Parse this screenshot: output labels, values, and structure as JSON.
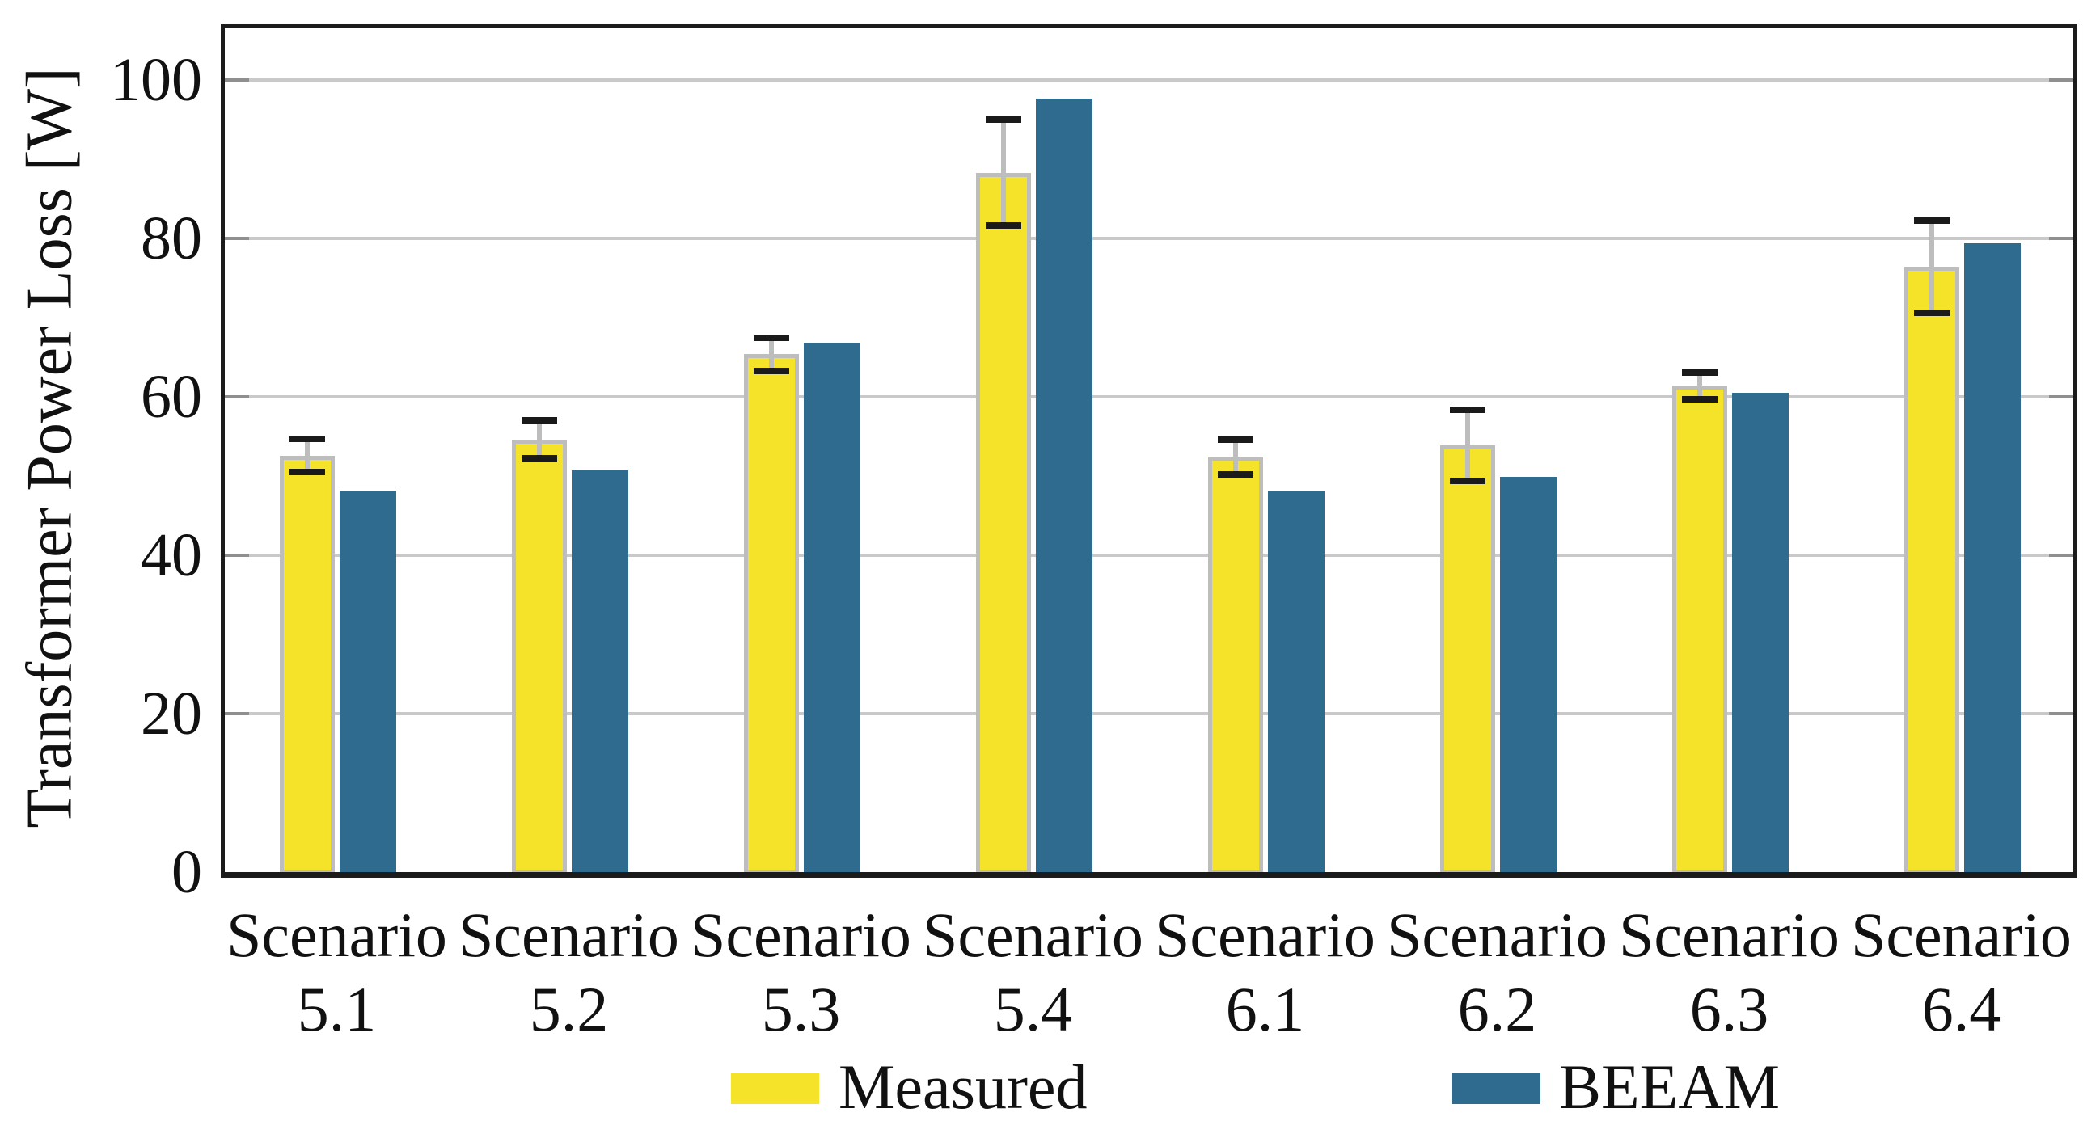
{
  "chart_data": {
    "type": "bar",
    "title": "",
    "xlabel": "",
    "ylabel": "Transformer Power Loss [W]",
    "ylim": [
      0,
      100
    ],
    "yticks": [
      "0",
      "20",
      "40",
      "60",
      "80",
      "100"
    ],
    "grid": "horizontal-gridlines-on",
    "legend_position": "bottom-center",
    "categories": [
      {
        "top": "Scenario",
        "bottom": "5.1"
      },
      {
        "top": "Scenario",
        "bottom": "5.2"
      },
      {
        "top": "Scenario",
        "bottom": "5.3"
      },
      {
        "top": "Scenario",
        "bottom": "5.4"
      },
      {
        "top": "Scenario",
        "bottom": "6.1"
      },
      {
        "top": "Scenario",
        "bottom": "6.2"
      },
      {
        "top": "Scenario",
        "bottom": "6.3"
      },
      {
        "top": "Scenario",
        "bottom": "6.4"
      }
    ],
    "series": [
      {
        "name": "Measured",
        "color": "#f5e32a",
        "edge_color": "#bdbdbd",
        "values": [
          52.6,
          54.6,
          65.4,
          88.3,
          52.4,
          53.9,
          61.4,
          76.4
        ],
        "error": [
          2.1,
          2.4,
          2.1,
          6.7,
          2.2,
          4.5,
          1.7,
          5.8
        ]
      },
      {
        "name": "BEEAM",
        "color": "#2f6b8e",
        "values": [
          48.2,
          50.7,
          66.8,
          97.7,
          48.1,
          49.9,
          60.5,
          79.4
        ]
      }
    ],
    "error_bar_style": {
      "whisker_color": "#bdbdbd",
      "cap_color": "#1a1a1a"
    }
  },
  "colors": {
    "background": "#ffffff",
    "frame": "#1b1b1b",
    "gridline": "#c9c9c9",
    "tick": "#8f8f8f",
    "text": "#111111"
  }
}
